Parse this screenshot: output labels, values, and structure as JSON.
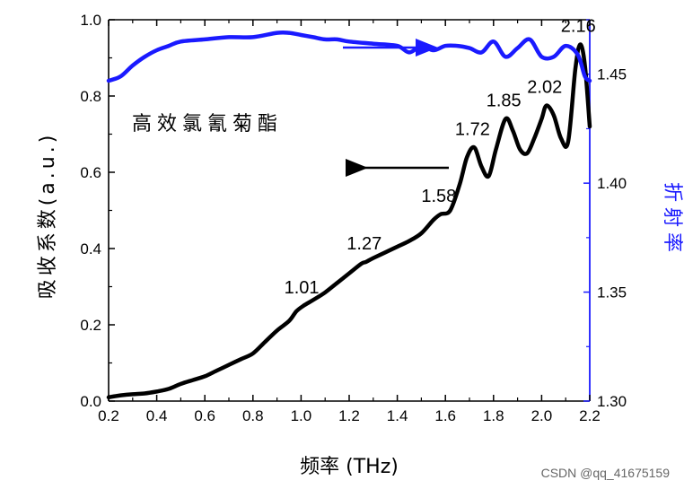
{
  "chart_data": {
    "type": "line",
    "title": "高效氯氰菊酯",
    "xlabel": "频率 (THz)",
    "ylabel": "吸收系数(a.u.)",
    "ylabel_right": "折射率",
    "xlim": [
      0.2,
      2.2
    ],
    "ylim": [
      0.0,
      1.0
    ],
    "ylim_right": [
      1.3,
      1.475
    ],
    "x_ticks": [
      "0.2",
      "0.4",
      "0.6",
      "0.8",
      "1.0",
      "1.2",
      "1.4",
      "1.6",
      "1.8",
      "2.0",
      "2.2"
    ],
    "y_ticks": [
      "0.0",
      "0.2",
      "0.4",
      "0.6",
      "0.8",
      "1.0"
    ],
    "y_ticks_right": [
      "1.30",
      "1.35",
      "1.40",
      "1.45"
    ],
    "grid": false,
    "series": [
      {
        "name": "吸收系数",
        "axis": "left",
        "color": "#000000",
        "x": [
          0.2,
          0.25,
          0.3,
          0.35,
          0.4,
          0.45,
          0.5,
          0.55,
          0.6,
          0.65,
          0.7,
          0.75,
          0.8,
          0.85,
          0.9,
          0.95,
          0.98,
          1.01,
          1.05,
          1.1,
          1.15,
          1.2,
          1.25,
          1.27,
          1.3,
          1.35,
          1.4,
          1.45,
          1.5,
          1.55,
          1.58,
          1.62,
          1.66,
          1.69,
          1.72,
          1.75,
          1.78,
          1.81,
          1.85,
          1.88,
          1.91,
          1.94,
          1.97,
          2.0,
          2.02,
          2.05,
          2.08,
          2.11,
          2.14,
          2.16,
          2.18,
          2.2
        ],
        "y": [
          0.01,
          0.015,
          0.018,
          0.02,
          0.025,
          0.032,
          0.045,
          0.055,
          0.065,
          0.08,
          0.095,
          0.11,
          0.125,
          0.155,
          0.185,
          0.21,
          0.235,
          0.25,
          0.265,
          0.285,
          0.31,
          0.335,
          0.36,
          0.365,
          0.375,
          0.39,
          0.405,
          0.42,
          0.44,
          0.475,
          0.49,
          0.5,
          0.57,
          0.64,
          0.665,
          0.615,
          0.59,
          0.66,
          0.74,
          0.71,
          0.66,
          0.65,
          0.69,
          0.74,
          0.775,
          0.75,
          0.69,
          0.68,
          0.87,
          0.935,
          0.88,
          0.72
        ]
      },
      {
        "name": "折射率",
        "axis": "right",
        "color": "#1a1aff",
        "x": [
          0.2,
          0.25,
          0.3,
          0.35,
          0.4,
          0.45,
          0.5,
          0.6,
          0.7,
          0.8,
          0.9,
          0.95,
          1.0,
          1.05,
          1.1,
          1.15,
          1.2,
          1.3,
          1.4,
          1.45,
          1.5,
          1.55,
          1.6,
          1.65,
          1.7,
          1.75,
          1.8,
          1.85,
          1.9,
          1.95,
          2.0,
          2.05,
          2.1,
          2.15,
          2.18,
          2.2
        ],
        "y": [
          1.447,
          1.449,
          1.454,
          1.458,
          1.461,
          1.463,
          1.465,
          1.466,
          1.467,
          1.467,
          1.469,
          1.469,
          1.468,
          1.467,
          1.466,
          1.466,
          1.465,
          1.464,
          1.463,
          1.46,
          1.463,
          1.461,
          1.463,
          1.463,
          1.462,
          1.46,
          1.465,
          1.458,
          1.462,
          1.466,
          1.458,
          1.458,
          1.463,
          1.459,
          1.449,
          1.447
        ]
      }
    ],
    "annotations": [
      {
        "text": "1.01",
        "x": 1.01,
        "y": 0.25
      },
      {
        "text": "1.27",
        "x": 1.27,
        "y": 0.365
      },
      {
        "text": "1.58",
        "x": 1.58,
        "y": 0.49
      },
      {
        "text": "1.72",
        "x": 1.72,
        "y": 0.665
      },
      {
        "text": "1.85",
        "x": 1.85,
        "y": 0.74
      },
      {
        "text": "2.02",
        "x": 2.02,
        "y": 0.775
      },
      {
        "text": "2.16",
        "x": 2.16,
        "y": 0.935
      }
    ]
  },
  "watermark": "CSDN @qq_41675159"
}
